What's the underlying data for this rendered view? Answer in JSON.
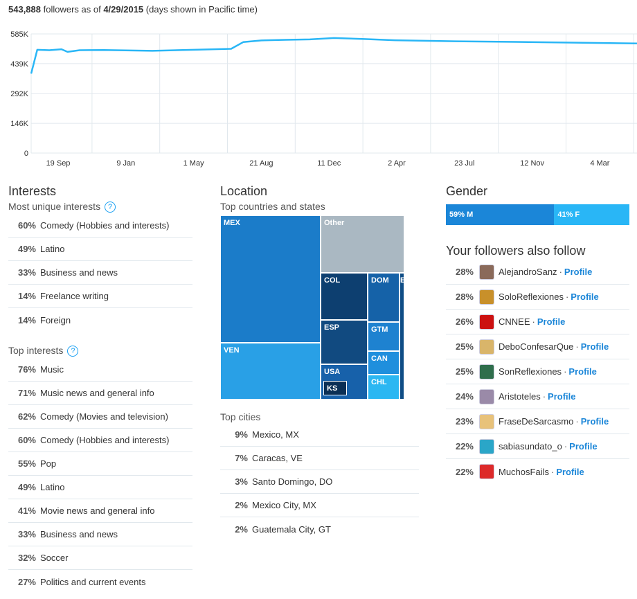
{
  "summary": {
    "count": "543,888",
    "text_mid": " followers as of ",
    "date": "4/29/2015",
    "note": " (days shown in Pacific time)"
  },
  "chart_data": {
    "type": "line",
    "ytick_labels": [
      "585K",
      "439K",
      "292K",
      "146K",
      "0"
    ],
    "ytick_values": [
      585000,
      439000,
      292000,
      146000,
      0
    ],
    "ylim": [
      0,
      585000
    ],
    "xtick_labels": [
      "19 Sep",
      "9 Jan",
      "1 May",
      "21 Aug",
      "11 Dec",
      "2 Apr",
      "23 Jul",
      "12 Nov",
      "4 Mar"
    ],
    "grid": true,
    "color": "#29b6f6",
    "series": [
      {
        "x": [
          0,
          0.01,
          0.03,
          0.05,
          0.06,
          0.08,
          0.12,
          0.2,
          0.28,
          0.33,
          0.35,
          0.38,
          0.42,
          0.46,
          0.5,
          0.55,
          0.6,
          0.7,
          0.8,
          0.9,
          1.0
        ],
        "values": [
          390000,
          507000,
          505000,
          510000,
          497000,
          505000,
          506000,
          502000,
          508000,
          512000,
          545000,
          553000,
          556000,
          558000,
          565000,
          560000,
          554000,
          549000,
          546000,
          542000,
          538000
        ]
      }
    ]
  },
  "interests": {
    "title": "Interests",
    "unique_label": "Most unique interests",
    "unique": [
      {
        "pct": "60%",
        "label": "Comedy (Hobbies and interests)"
      },
      {
        "pct": "49%",
        "label": "Latino"
      },
      {
        "pct": "33%",
        "label": "Business and news"
      },
      {
        "pct": "14%",
        "label": "Freelance writing"
      },
      {
        "pct": "14%",
        "label": "Foreign"
      }
    ],
    "top_label": "Top interests",
    "top": [
      {
        "pct": "76%",
        "label": "Music"
      },
      {
        "pct": "71%",
        "label": "Music news and general info"
      },
      {
        "pct": "62%",
        "label": "Comedy (Movies and television)"
      },
      {
        "pct": "60%",
        "label": "Comedy (Hobbies and interests)"
      },
      {
        "pct": "55%",
        "label": "Pop"
      },
      {
        "pct": "49%",
        "label": "Latino"
      },
      {
        "pct": "41%",
        "label": "Movie news and general info"
      },
      {
        "pct": "33%",
        "label": "Business and news"
      },
      {
        "pct": "32%",
        "label": "Soccer"
      },
      {
        "pct": "27%",
        "label": "Politics and current events"
      }
    ],
    "help_glyph": "?"
  },
  "location": {
    "title": "Location",
    "countries_label": "Top countries and states",
    "treemap": [
      "MEX",
      "Other",
      "VEN",
      "COL",
      "DOM",
      "ESP",
      "GTM",
      "USA",
      "CAN",
      "KS",
      "CHL",
      "E"
    ],
    "cities_label": "Top cities",
    "cities": [
      {
        "pct": "9%",
        "label": "Mexico, MX"
      },
      {
        "pct": "7%",
        "label": "Caracas, VE"
      },
      {
        "pct": "3%",
        "label": "Santo Domingo, DO"
      },
      {
        "pct": "2%",
        "label": "Mexico City, MX"
      },
      {
        "pct": "2%",
        "label": "Guatemala City, GT"
      }
    ]
  },
  "gender": {
    "title": "Gender",
    "male_label": "59% M",
    "female_label": "41% F",
    "male_pct": 59,
    "female_pct": 41,
    "male_color": "#1b86d8",
    "female_color": "#29b6f6"
  },
  "also_follow": {
    "title": "Your followers also follow",
    "link_label": "Profile",
    "separator": "·",
    "items": [
      {
        "pct": "28%",
        "name": "AlejandroSanz",
        "avatar": "#8a6a5a"
      },
      {
        "pct": "28%",
        "name": "SoloReflexiones",
        "avatar": "#c8902a"
      },
      {
        "pct": "26%",
        "name": "CNNEE",
        "avatar": "#cc1111"
      },
      {
        "pct": "25%",
        "name": "DeboConfesarQue",
        "avatar": "#d9b56a"
      },
      {
        "pct": "25%",
        "name": "SonReflexiones",
        "avatar": "#2f6e4c"
      },
      {
        "pct": "24%",
        "name": "Aristoteles",
        "avatar": "#9a8aa8"
      },
      {
        "pct": "23%",
        "name": "FraseDeSarcasmo",
        "avatar": "#e8c27a"
      },
      {
        "pct": "22%",
        "name": "sabiasundato_o",
        "avatar": "#2aa6c8"
      },
      {
        "pct": "22%",
        "name": "MuchosFails",
        "avatar": "#dd2a2a"
      }
    ]
  }
}
